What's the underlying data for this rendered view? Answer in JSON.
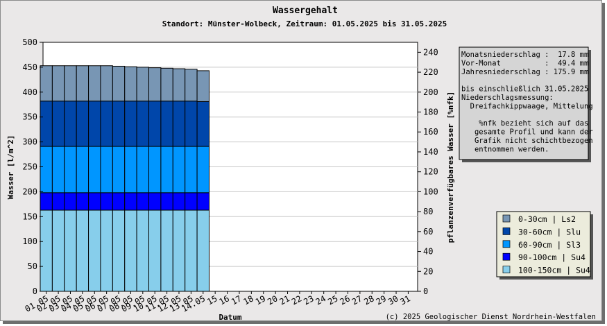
{
  "chart_data": {
    "type": "bar",
    "stacked": true,
    "title": "Wassergehalt",
    "subtitle": "Standort: Münster-Wolbeck, Zeitraum: 01.05.2025 bis 31.05.2025",
    "xlabel": "Datum",
    "ylabel": "Wasser [l/m^2]",
    "y2label": "pflanzenverfügbares Wasser [%nfk]",
    "ylim": [
      0,
      500
    ],
    "yticks": [
      0,
      50,
      100,
      150,
      200,
      250,
      300,
      350,
      400,
      450,
      500
    ],
    "y2lim": [
      0,
      250
    ],
    "y2ticks": [
      0,
      20,
      40,
      60,
      80,
      100,
      120,
      140,
      160,
      180,
      200,
      220,
      240
    ],
    "grid": true,
    "legend_position": "bottom-right",
    "xticks": [
      "01.05",
      "02.05",
      "03.05",
      "04.05",
      "05.05",
      "06.05",
      "07.05",
      "08.05",
      "09.05",
      "10.05",
      "11.05",
      "12.05",
      "13.05",
      "14.05",
      "15",
      "16",
      "17",
      "18",
      "19",
      "20",
      "21",
      "22",
      "23",
      "24",
      "25",
      "26",
      "27",
      "28",
      "29",
      "30",
      "31"
    ],
    "categories": [
      "01.05",
      "02.05",
      "03.05",
      "04.05",
      "05.05",
      "06.05",
      "07.05",
      "08.05",
      "09.05",
      "10.05",
      "11.05",
      "12.05",
      "13.05",
      "14.05"
    ],
    "series": [
      {
        "name": "100-150cm | Su4",
        "color": "#87ceeb",
        "values": [
          163,
          163,
          163,
          163,
          163,
          163,
          163,
          163,
          163,
          163,
          163,
          163,
          163,
          163
        ]
      },
      {
        "name": "90-100cm | Su4",
        "color": "#0000ff",
        "values": [
          35,
          35,
          35,
          35,
          35,
          35,
          35,
          35,
          35,
          35,
          35,
          35,
          35,
          35
        ]
      },
      {
        "name": "60-90cm | Sl3",
        "color": "#0096ff",
        "values": [
          93,
          93,
          93,
          93,
          93,
          93,
          93,
          93,
          93,
          93,
          93,
          93,
          93,
          93
        ]
      },
      {
        "name": "30-60cm | Slu",
        "color": "#0046aa",
        "values": [
          91,
          91,
          91,
          91,
          91,
          91,
          91,
          91,
          91,
          91,
          91,
          91,
          91,
          90
        ]
      },
      {
        "name": "0-30cm | Ls2",
        "color": "#7896b4",
        "values": [
          71,
          71,
          71,
          71,
          71,
          71,
          70,
          69,
          68,
          67,
          66,
          65,
          64,
          62
        ]
      }
    ],
    "info_lines": [
      "Monatsniederschlag :  17.8 mm",
      "Vor-Monat          :  49.4 mm",
      "Jahresniederschlag : 175.9 mm",
      "",
      "bis einschließlich 31.05.2025",
      "Niederschlagsmessung:",
      "  Dreifachkippwaage, Mittelung",
      "",
      "    %nfk bezieht sich auf das",
      "   gesamte Profil und kann der",
      "   Grafik nicht schichtbezogen",
      "   entnommen werden."
    ],
    "legend": [
      {
        "label": "0-30cm | Ls2",
        "color": "#7896b4"
      },
      {
        "label": "30-60cm | Slu",
        "color": "#0046aa"
      },
      {
        "label": "60-90cm | Sl3",
        "color": "#0096ff"
      },
      {
        "label": "90-100cm | Su4",
        "color": "#0000ff"
      },
      {
        "label": "100-150cm | Su4",
        "color": "#87ceeb"
      }
    ],
    "copyright": "(c) 2025 Geologischer Dienst Nordrhein-Westfalen"
  }
}
